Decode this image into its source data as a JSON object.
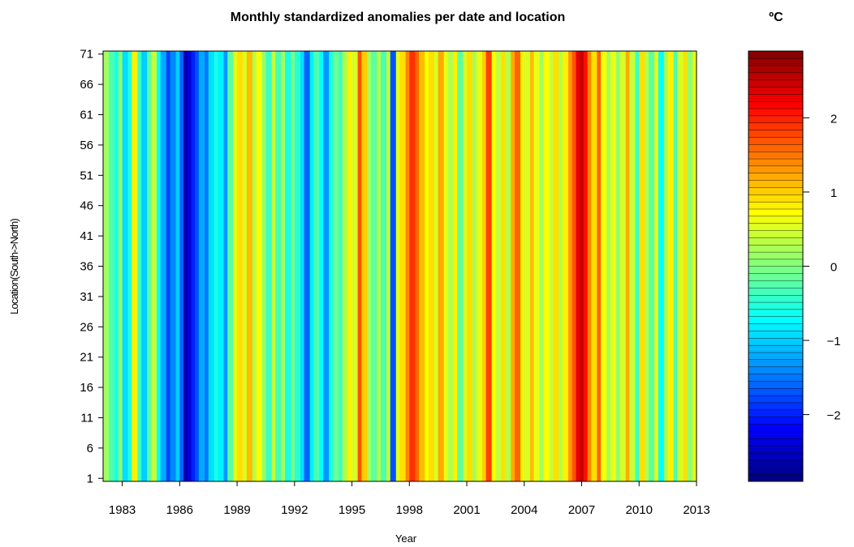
{
  "chart_data": {
    "type": "heatmap",
    "title": "Monthly standardized anomalies per date and location",
    "xlabel": "Year",
    "ylabel": "Location(South->North)",
    "x_ticks": [
      "1983",
      "1986",
      "1989",
      "1992",
      "1995",
      "1998",
      "2001",
      "2004",
      "2007",
      "2010",
      "2013"
    ],
    "y_ticks": [
      "1",
      "6",
      "11",
      "16",
      "21",
      "26",
      "31",
      "36",
      "41",
      "46",
      "51",
      "56",
      "61",
      "66",
      "71"
    ],
    "xlim": [
      1982.0,
      2013.0
    ],
    "ylim": [
      1,
      71
    ],
    "n_locations": 71,
    "colorbar": {
      "title": "ºC",
      "ticks": [
        "2",
        "1",
        "0",
        "−1",
        "−2"
      ],
      "tick_values": [
        2,
        1,
        0,
        -1,
        -2
      ],
      "range": [
        -2.9,
        2.9
      ],
      "colors": [
        "#00007F",
        "#0000FF",
        "#007FFF",
        "#00FFFF",
        "#7FFF7F",
        "#FFFF00",
        "#FF7F00",
        "#FF0000",
        "#7F0000"
      ]
    },
    "column_anomalies": [
      {
        "year": 1982.0,
        "value": 0.2
      },
      {
        "year": 1982.3,
        "value": -0.3
      },
      {
        "year": 1982.6,
        "value": -0.6
      },
      {
        "year": 1982.8,
        "value": 0.1
      },
      {
        "year": 1983.0,
        "value": -0.9
      },
      {
        "year": 1983.3,
        "value": -0.5
      },
      {
        "year": 1983.5,
        "value": 0.8
      },
      {
        "year": 1983.8,
        "value": -0.4
      },
      {
        "year": 1984.0,
        "value": -1.0
      },
      {
        "year": 1984.3,
        "value": -0.2
      },
      {
        "year": 1984.5,
        "value": 0.4
      },
      {
        "year": 1984.8,
        "value": -0.7
      },
      {
        "year": 1985.0,
        "value": -1.2
      },
      {
        "year": 1985.3,
        "value": -1.8
      },
      {
        "year": 1985.5,
        "value": -1.4
      },
      {
        "year": 1985.8,
        "value": -1.0
      },
      {
        "year": 1986.0,
        "value": -1.6
      },
      {
        "year": 1986.2,
        "value": -2.6
      },
      {
        "year": 1986.4,
        "value": -2.4
      },
      {
        "year": 1986.6,
        "value": -2.0
      },
      {
        "year": 1986.8,
        "value": -1.7
      },
      {
        "year": 1987.0,
        "value": -1.2
      },
      {
        "year": 1987.3,
        "value": -1.5
      },
      {
        "year": 1987.5,
        "value": -0.9
      },
      {
        "year": 1987.8,
        "value": -0.6
      },
      {
        "year": 1988.0,
        "value": -0.8
      },
      {
        "year": 1988.3,
        "value": -1.3
      },
      {
        "year": 1988.5,
        "value": -0.2
      },
      {
        "year": 1988.8,
        "value": 0.6
      },
      {
        "year": 1989.0,
        "value": 0.9
      },
      {
        "year": 1989.3,
        "value": 0.5
      },
      {
        "year": 1989.5,
        "value": 1.1
      },
      {
        "year": 1989.8,
        "value": 0.3
      },
      {
        "year": 1990.0,
        "value": 0.7
      },
      {
        "year": 1990.3,
        "value": 0.1
      },
      {
        "year": 1990.5,
        "value": -0.4
      },
      {
        "year": 1990.8,
        "value": 0.4
      },
      {
        "year": 1991.0,
        "value": -0.3
      },
      {
        "year": 1991.3,
        "value": 0.2
      },
      {
        "year": 1991.5,
        "value": -0.6
      },
      {
        "year": 1991.8,
        "value": 0.0
      },
      {
        "year": 1992.0,
        "value": -0.5
      },
      {
        "year": 1992.3,
        "value": -0.9
      },
      {
        "year": 1992.5,
        "value": -1.6
      },
      {
        "year": 1992.8,
        "value": -0.8
      },
      {
        "year": 1993.0,
        "value": -0.3
      },
      {
        "year": 1993.3,
        "value": -0.7
      },
      {
        "year": 1993.5,
        "value": -1.3
      },
      {
        "year": 1993.8,
        "value": -0.6
      },
      {
        "year": 1994.0,
        "value": -0.1
      },
      {
        "year": 1994.3,
        "value": -0.4
      },
      {
        "year": 1994.5,
        "value": 0.3
      },
      {
        "year": 1994.8,
        "value": 0.8
      },
      {
        "year": 1995.0,
        "value": 0.5
      },
      {
        "year": 1995.3,
        "value": 1.7
      },
      {
        "year": 1995.5,
        "value": 1.0
      },
      {
        "year": 1995.8,
        "value": 0.2
      },
      {
        "year": 1996.0,
        "value": -0.2
      },
      {
        "year": 1996.3,
        "value": 0.3
      },
      {
        "year": 1996.5,
        "value": -0.3
      },
      {
        "year": 1996.8,
        "value": 0.4
      },
      {
        "year": 1997.0,
        "value": -1.7
      },
      {
        "year": 1997.3,
        "value": 0.6
      },
      {
        "year": 1997.5,
        "value": 0.9
      },
      {
        "year": 1997.8,
        "value": 1.4
      },
      {
        "year": 1998.0,
        "value": 1.9
      },
      {
        "year": 1998.3,
        "value": 1.6
      },
      {
        "year": 1998.5,
        "value": 1.1
      },
      {
        "year": 1998.8,
        "value": 0.7
      },
      {
        "year": 1999.0,
        "value": 0.9
      },
      {
        "year": 1999.3,
        "value": 0.5
      },
      {
        "year": 1999.5,
        "value": 1.2
      },
      {
        "year": 1999.8,
        "value": 0.6
      },
      {
        "year": 2000.0,
        "value": 0.3
      },
      {
        "year": 2000.3,
        "value": 0.8
      },
      {
        "year": 2000.5,
        "value": -0.2
      },
      {
        "year": 2000.8,
        "value": 0.5
      },
      {
        "year": 2001.0,
        "value": 0.9
      },
      {
        "year": 2001.3,
        "value": 0.2
      },
      {
        "year": 2001.5,
        "value": 0.6
      },
      {
        "year": 2001.8,
        "value": 1.0
      },
      {
        "year": 2002.0,
        "value": 1.8
      },
      {
        "year": 2002.3,
        "value": 0.7
      },
      {
        "year": 2002.5,
        "value": 0.4
      },
      {
        "year": 2002.8,
        "value": 0.9
      },
      {
        "year": 2003.0,
        "value": 0.3
      },
      {
        "year": 2003.3,
        "value": 1.2
      },
      {
        "year": 2003.5,
        "value": 1.6
      },
      {
        "year": 2003.8,
        "value": 0.8
      },
      {
        "year": 2004.0,
        "value": 0.5
      },
      {
        "year": 2004.3,
        "value": 1.1
      },
      {
        "year": 2004.5,
        "value": 0.6
      },
      {
        "year": 2004.8,
        "value": 0.2
      },
      {
        "year": 2005.0,
        "value": 0.7
      },
      {
        "year": 2005.3,
        "value": 0.4
      },
      {
        "year": 2005.5,
        "value": 0.9
      },
      {
        "year": 2005.8,
        "value": 0.3
      },
      {
        "year": 2006.0,
        "value": 0.8
      },
      {
        "year": 2006.3,
        "value": 1.3
      },
      {
        "year": 2006.5,
        "value": 1.7
      },
      {
        "year": 2006.7,
        "value": 2.3
      },
      {
        "year": 2006.9,
        "value": 2.5
      },
      {
        "year": 2007.1,
        "value": 2.1
      },
      {
        "year": 2007.3,
        "value": 1.4
      },
      {
        "year": 2007.5,
        "value": 0.9
      },
      {
        "year": 2007.8,
        "value": 1.6
      },
      {
        "year": 2008.0,
        "value": 0.7
      },
      {
        "year": 2008.3,
        "value": 0.2
      },
      {
        "year": 2008.5,
        "value": 0.6
      },
      {
        "year": 2008.8,
        "value": 0.1
      },
      {
        "year": 2009.0,
        "value": 0.5
      },
      {
        "year": 2009.3,
        "value": 1.2
      },
      {
        "year": 2009.5,
        "value": 0.4
      },
      {
        "year": 2009.8,
        "value": -0.4
      },
      {
        "year": 2010.0,
        "value": 0.9
      },
      {
        "year": 2010.3,
        "value": 0.3
      },
      {
        "year": 2010.5,
        "value": -0.2
      },
      {
        "year": 2010.8,
        "value": 0.6
      },
      {
        "year": 2011.0,
        "value": -0.7
      },
      {
        "year": 2011.3,
        "value": 0.2
      },
      {
        "year": 2011.5,
        "value": 0.8
      },
      {
        "year": 2011.8,
        "value": -0.3
      },
      {
        "year": 2012.0,
        "value": 0.5
      },
      {
        "year": 2012.3,
        "value": 0.9
      },
      {
        "year": 2012.5,
        "value": 0.1
      },
      {
        "year": 2012.8,
        "value": 0.6
      }
    ]
  }
}
